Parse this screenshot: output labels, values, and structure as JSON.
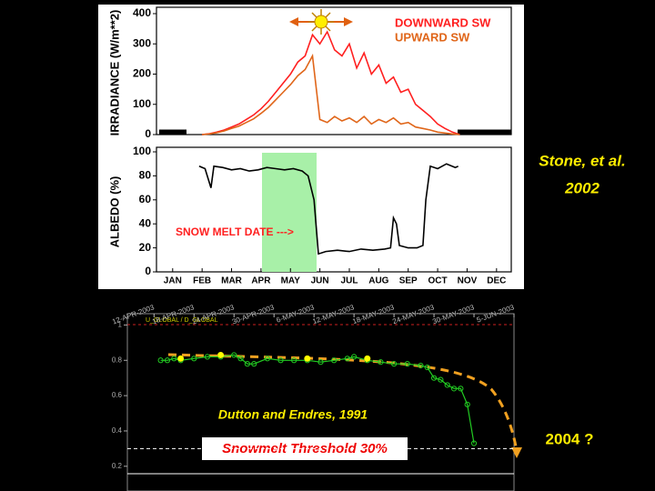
{
  "annotations": {
    "citation": "Stone, et al.",
    "year": "2002"
  },
  "chart_data": [
    {
      "type": "line",
      "ylabel": "IRRADIANCE (W/m**2)",
      "ylim": [
        0,
        400
      ],
      "yticks": [
        0,
        100,
        200,
        300,
        400
      ],
      "xlim": [
        0.45,
        12.5
      ],
      "x": [
        2.0,
        2.25,
        2.5,
        2.75,
        3.0,
        3.25,
        3.5,
        3.75,
        4.0,
        4.25,
        4.5,
        4.75,
        5.0,
        5.25,
        5.5,
        5.75,
        6.0,
        6.25,
        6.5,
        6.75,
        7.0,
        7.25,
        7.5,
        7.75,
        8.0,
        8.25,
        8.5,
        8.75,
        9.0,
        9.25,
        9.5,
        9.75,
        10.0,
        10.25,
        10.5,
        10.75
      ],
      "series": [
        {
          "name": "DOWNWARD SW",
          "color": "#ff2020",
          "values": [
            0,
            3,
            8,
            15,
            25,
            35,
            50,
            65,
            85,
            110,
            140,
            170,
            200,
            240,
            260,
            330,
            300,
            340,
            280,
            260,
            300,
            220,
            270,
            200,
            230,
            170,
            190,
            140,
            150,
            100,
            80,
            60,
            35,
            20,
            8,
            0
          ]
        },
        {
          "name": "UPWARD SW",
          "color": "#e0661a",
          "values": [
            0,
            2,
            6,
            12,
            20,
            28,
            40,
            52,
            70,
            90,
            115,
            140,
            165,
            195,
            215,
            260,
            50,
            40,
            60,
            45,
            55,
            40,
            60,
            35,
            50,
            40,
            55,
            35,
            40,
            25,
            20,
            15,
            8,
            5,
            2,
            0
          ]
        }
      ]
    },
    {
      "type": "line",
      "ylabel": "ALBEDO (%)",
      "ylim": [
        0,
        100
      ],
      "yticks": [
        0,
        20,
        40,
        60,
        80,
        100
      ],
      "xlim": [
        0.45,
        12.5
      ],
      "xticks": [
        {
          "value": 1,
          "label": "JAN"
        },
        {
          "value": 2,
          "label": "FEB"
        },
        {
          "value": 3,
          "label": "MAR"
        },
        {
          "value": 4,
          "label": "APR"
        },
        {
          "value": 5,
          "label": "MAY"
        },
        {
          "value": 6,
          "label": "JUN"
        },
        {
          "value": 7,
          "label": "JUL"
        },
        {
          "value": 8,
          "label": "AUG"
        },
        {
          "value": 9,
          "label": "SEP"
        },
        {
          "value": 10,
          "label": "OCT"
        },
        {
          "value": 11,
          "label": "NOV"
        },
        {
          "value": 12,
          "label": "DEC"
        }
      ],
      "x": [
        1.9,
        2.1,
        2.3,
        2.4,
        2.7,
        3.0,
        3.3,
        3.6,
        3.9,
        4.2,
        4.5,
        4.8,
        5.1,
        5.4,
        5.6,
        5.8,
        5.95,
        6.2,
        6.6,
        7.0,
        7.4,
        7.8,
        8.2,
        8.4,
        8.5,
        8.6,
        8.7,
        9.0,
        9.3,
        9.5,
        9.6,
        9.75,
        10.0,
        10.3,
        10.6,
        10.7
      ],
      "series": [
        {
          "color": "#000000",
          "values": [
            88,
            86,
            70,
            88,
            87,
            85,
            86,
            84,
            85,
            87,
            86,
            85,
            86,
            84,
            80,
            60,
            15,
            17,
            18,
            17,
            19,
            18,
            19,
            20,
            45,
            40,
            22,
            20,
            20,
            22,
            60,
            88,
            86,
            90,
            87,
            88
          ]
        }
      ],
      "annotation": "SNOW MELT DATE  --->"
    },
    {
      "type": "line",
      "legend": "U_GLOBAL / D_GLOBAL",
      "ylim": [
        0.06,
        1.1
      ],
      "yticks": [
        0.2,
        0.4,
        0.6,
        0.8,
        1
      ],
      "xlim": [
        "2003-04-08",
        "2003-06-05"
      ],
      "xticks": [
        {
          "value": "2003-04-12",
          "label": "12-APR-2003"
        },
        {
          "value": "2003-04-18",
          "label": "18-APR-2003"
        },
        {
          "value": "2003-04-24",
          "label": "24-APR-2003"
        },
        {
          "value": "2003-04-30",
          "label": "30-APR-2003"
        },
        {
          "value": "2003-05-06",
          "label": "6-MAY-2003"
        },
        {
          "value": "2003-05-12",
          "label": "12-MAY-2003"
        },
        {
          "value": "2003-05-18",
          "label": "18-MAY-2003"
        },
        {
          "value": "2003-05-24",
          "label": "24-MAY-2003"
        },
        {
          "value": "2003-05-30",
          "label": "30-MAY-2003"
        },
        {
          "value": "2003-06-05",
          "label": "5-JUN-2003"
        }
      ],
      "series": [
        {
          "color": "#22cc22",
          "style": "line+markers",
          "x": [
            "2003-04-13",
            "2003-04-14",
            "2003-04-15",
            "2003-04-16",
            "2003-04-18",
            "2003-04-20",
            "2003-04-22",
            "2003-04-24",
            "2003-04-25",
            "2003-04-26",
            "2003-04-27",
            "2003-04-29",
            "2003-05-01",
            "2003-05-03",
            "2003-05-05",
            "2003-05-07",
            "2003-05-09",
            "2003-05-11",
            "2003-05-12",
            "2003-05-14",
            "2003-05-16",
            "2003-05-18",
            "2003-05-20",
            "2003-05-22",
            "2003-05-23",
            "2003-05-24",
            "2003-05-25",
            "2003-05-26",
            "2003-05-27",
            "2003-05-28",
            "2003-05-29",
            "2003-05-30"
          ],
          "values": [
            0.8,
            0.8,
            0.81,
            0.8,
            0.81,
            0.82,
            0.82,
            0.83,
            0.81,
            0.78,
            0.78,
            0.81,
            0.8,
            0.8,
            0.8,
            0.79,
            0.8,
            0.81,
            0.82,
            0.8,
            0.79,
            0.78,
            0.78,
            0.77,
            0.76,
            0.7,
            0.69,
            0.66,
            0.64,
            0.64,
            0.55,
            0.33
          ]
        },
        {
          "color": "#ffff00",
          "style": "markers",
          "x": [
            "2003-04-16",
            "2003-04-22",
            "2003-05-05",
            "2003-05-14"
          ],
          "values": [
            0.81,
            0.83,
            0.81,
            0.81
          ]
        }
      ],
      "threshold": 0.3,
      "threshold_label": "Snowmelt Threshold  30%",
      "citation": "Dutton and Endres, 1991",
      "forecast": "2004 ?"
    }
  ]
}
